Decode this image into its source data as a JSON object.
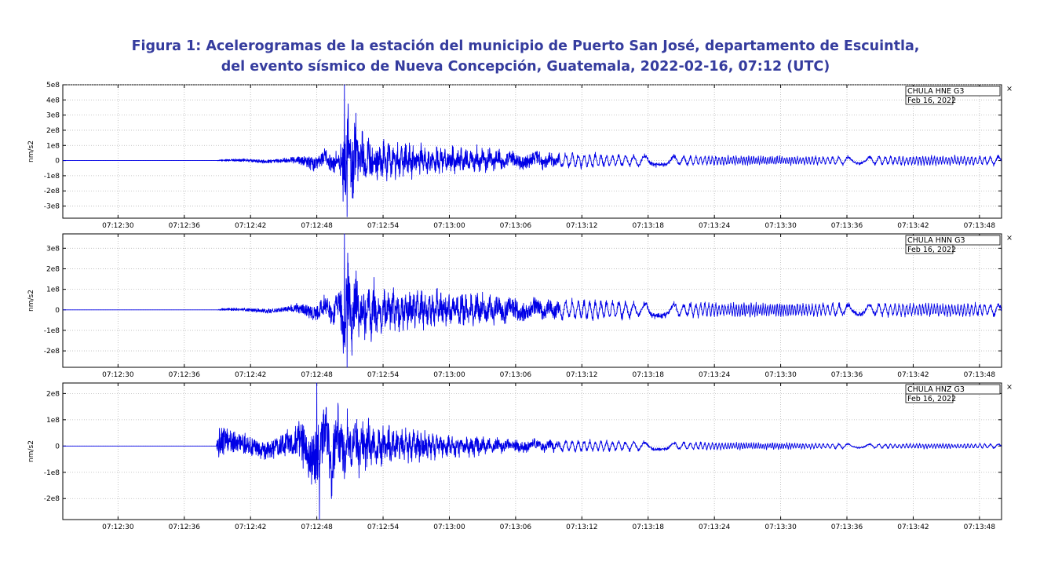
{
  "figure": {
    "title_line1": "Figura 1: Acelerogramas de la estación del municipio de Puerto San José, departamento de Escuintla,",
    "title_line2": "del  evento sísmico de Nueva Concepción, Guatemala, 2022-02-16, 07:12 (UTC)"
  },
  "colors": {
    "title": "#353c9e",
    "trace": "#0000e6",
    "grid": "#b8b8b8"
  },
  "chart_data": [
    {
      "type": "line",
      "channel_label": "CHULA HNE G3",
      "date_label": "Feb 16, 2022",
      "ylabel": "nm/s2",
      "yticks": [
        -300000000.0,
        -200000000.0,
        -100000000.0,
        0,
        100000000.0,
        200000000.0,
        300000000.0,
        400000000.0,
        500000000.0
      ],
      "ytick_labels": [
        "-3e8",
        "-2e8",
        "-1e8",
        "0",
        "1e8",
        "2e8",
        "3e8",
        "4e8",
        "5e8"
      ],
      "ylim": [
        -380000000.0,
        500000000.0
      ],
      "x_start": "07:12:25",
      "x_end": "07:13:50",
      "xtick_labels": [
        "07:12:30",
        "07:12:36",
        "07:12:42",
        "07:12:48",
        "07:12:54",
        "07:13:00",
        "07:13:06",
        "07:13:12",
        "07:13:18",
        "07:13:24",
        "07:13:30",
        "07:13:36",
        "07:13:42",
        "07:13:48"
      ],
      "xticks_s": [
        5,
        11,
        17,
        23,
        29,
        35,
        41,
        47,
        53,
        59,
        65,
        71,
        77,
        83
      ],
      "p_arrival_s": 14.0,
      "s_arrival_s": 25.5,
      "peak_amplitude": 500000000.0,
      "min_amplitude": -370000000.0,
      "noise_level": 12000000.0,
      "coda_level": 120000000.0,
      "tail_level": 35000000.0,
      "x": [
        0,
        13.9,
        14.5,
        20,
        25,
        25.5,
        26.3,
        27,
        30,
        35,
        40,
        45,
        55,
        65,
        75,
        85
      ],
      "envelope": [
        0,
        0,
        12000000.0,
        25000000.0,
        120000000.0,
        500000000.0,
        400000000.0,
        230000000.0,
        150000000.0,
        120000000.0,
        100000000.0,
        65000000.0,
        45000000.0,
        35000000.0,
        38000000.0,
        40000000.0
      ]
    },
    {
      "type": "line",
      "channel_label": "CHULA HNN G3",
      "date_label": "Feb 16, 2022",
      "ylabel": "nm/s2",
      "yticks": [
        -200000000.0,
        -100000000.0,
        0,
        100000000.0,
        200000000.0,
        300000000.0
      ],
      "ytick_labels": [
        "-2e8",
        "-1e8",
        "0",
        "1e8",
        "2e8",
        "3e8"
      ],
      "ylim": [
        -280000000.0,
        370000000.0
      ],
      "x_start": "07:12:25",
      "x_end": "07:13:50",
      "xtick_labels": [
        "07:12:30",
        "07:12:36",
        "07:12:42",
        "07:12:48",
        "07:12:54",
        "07:13:00",
        "07:13:06",
        "07:13:12",
        "07:13:18",
        "07:13:24",
        "07:13:30",
        "07:13:36",
        "07:13:42",
        "07:13:48"
      ],
      "xticks_s": [
        5,
        11,
        17,
        23,
        29,
        35,
        41,
        47,
        53,
        59,
        65,
        71,
        77,
        83
      ],
      "p_arrival_s": 14.0,
      "s_arrival_s": 25.5,
      "peak_amplitude": 370000000.0,
      "min_amplitude": -280000000.0,
      "x": [
        0,
        13.9,
        14.5,
        20,
        25,
        25.5,
        26.3,
        27,
        30,
        35,
        40,
        45,
        55,
        65,
        75,
        85
      ],
      "envelope": [
        0,
        0,
        10000000.0,
        20000000.0,
        110000000.0,
        370000000.0,
        320000000.0,
        200000000.0,
        130000000.0,
        110000000.0,
        90000000.0,
        65000000.0,
        45000000.0,
        40000000.0,
        40000000.0,
        40000000.0
      ]
    },
    {
      "type": "line",
      "channel_label": "CHULA HNZ G3",
      "date_label": "Feb 16, 2022",
      "ylabel": "nm/s2",
      "yticks": [
        -200000000.0,
        -100000000.0,
        0,
        100000000.0,
        200000000.0
      ],
      "ytick_labels": [
        "-2e8",
        "-1e8",
        "0",
        "1e8",
        "2e8"
      ],
      "ylim": [
        -280000000.0,
        240000000.0
      ],
      "x_start": "07:12:25",
      "x_end": "07:13:50",
      "xtick_labels": [
        "07:12:30",
        "07:12:36",
        "07:12:42",
        "07:12:48",
        "07:12:54",
        "07:13:00",
        "07:13:06",
        "07:13:12",
        "07:13:18",
        "07:13:24",
        "07:13:30",
        "07:13:36",
        "07:13:42",
        "07:13:48"
      ],
      "xticks_s": [
        5,
        11,
        17,
        23,
        29,
        35,
        41,
        47,
        53,
        59,
        65,
        71,
        77,
        83
      ],
      "p_arrival_s": 13.9,
      "s_arrival_s": 23.0,
      "peak_amplitude": 240000000.0,
      "min_amplitude": -280000000.0,
      "x": [
        0,
        13.8,
        14.2,
        16,
        19,
        21,
        23,
        25,
        27,
        30,
        35,
        40,
        45,
        55,
        65,
        75,
        85
      ],
      "envelope": [
        0,
        0,
        100000000.0,
        70000000.0,
        60000000.0,
        100000000.0,
        230000000.0,
        200000000.0,
        140000000.0,
        90000000.0,
        55000000.0,
        40000000.0,
        30000000.0,
        20000000.0,
        15000000.0,
        12000000.0,
        12000000.0
      ]
    }
  ]
}
